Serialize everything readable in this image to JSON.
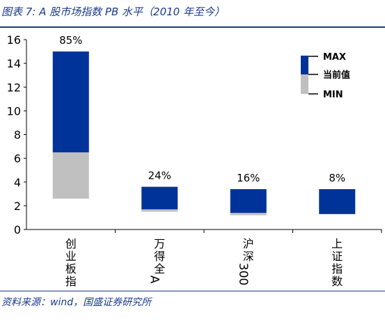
{
  "header": {
    "title": "图表 7: A 股市场指数 PB 水平（2010 年至今）"
  },
  "footer": {
    "source": "资料来源：wind，国盛证券研究所"
  },
  "chart_data": {
    "type": "bar",
    "subtype": "floating-range-with-current-marker",
    "title": "图表 7: A 股市场指数 PB 水平（2010 年至今）",
    "xlabel": "",
    "ylabel": "",
    "ylim": [
      0,
      16
    ],
    "yticks": [
      0,
      2,
      4,
      6,
      8,
      10,
      12,
      14,
      16
    ],
    "grid": false,
    "categories": [
      "创业板指",
      "万得全A",
      "沪深300",
      "上证指数"
    ],
    "series": [
      {
        "name": "MAX",
        "values": [
          15.0,
          3.6,
          3.4,
          3.4
        ]
      },
      {
        "name": "当前值",
        "values": [
          6.5,
          1.7,
          1.4,
          1.3
        ]
      },
      {
        "name": "MIN",
        "values": [
          2.6,
          1.5,
          1.2,
          1.3
        ]
      }
    ],
    "data_labels": [
      "85%",
      "24%",
      "16%",
      "8%"
    ],
    "legend": {
      "position": "top-right",
      "entries": [
        "MAX",
        "当前值",
        "MIN"
      ]
    },
    "colors": {
      "upper": "#003399",
      "lower": "#c0c0c0"
    }
  }
}
